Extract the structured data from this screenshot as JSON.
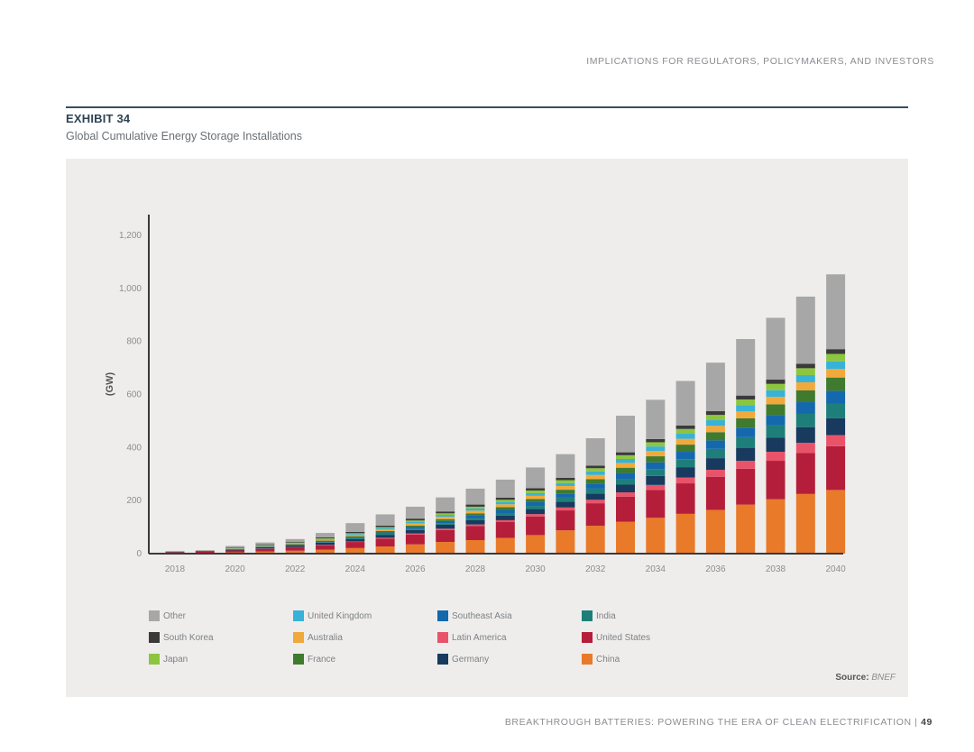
{
  "header": {
    "running_head": "IMPLICATIONS FOR REGULATORS, POLICYMAKERS, AND INVESTORS"
  },
  "exhibit": {
    "label": "EXHIBIT 34",
    "title": "Global Cumulative Energy Storage Installations"
  },
  "source": {
    "label": "Source:",
    "value": "BNEF"
  },
  "footer": {
    "text": "BREAKTHROUGH BATTERIES: POWERING THE ERA OF CLEAN ELECTRIFICATION",
    "separator": "|",
    "page": "49"
  },
  "chart_data": {
    "type": "bar",
    "stacked": true,
    "title": "Global Cumulative Energy Storage Installations",
    "ylabel": "(GW)",
    "xlabel": "",
    "ylim": [
      0,
      1300
    ],
    "yticks": [
      0,
      200,
      400,
      600,
      800,
      1000,
      1200
    ],
    "ytick_labels": [
      "0",
      "200",
      "400",
      "600",
      "800",
      "1,000",
      "1,200"
    ],
    "x": [
      2018,
      2019,
      2020,
      2021,
      2022,
      2023,
      2024,
      2025,
      2026,
      2027,
      2028,
      2029,
      2030,
      2031,
      2032,
      2033,
      2034,
      2035,
      2036,
      2037,
      2038,
      2039,
      2040
    ],
    "xtick_labels": [
      "2018",
      "2020",
      "2022",
      "2024",
      "2026",
      "2028",
      "2030",
      "2032",
      "2034",
      "2036",
      "2038",
      "2040"
    ],
    "grid": false,
    "legend_position": "bottom",
    "series": [
      {
        "name": "China",
        "color": "#e87a2a",
        "values": [
          2,
          3,
          5,
          8,
          11,
          15,
          21,
          27,
          35,
          44,
          51,
          59,
          70,
          88,
          105,
          120,
          135,
          150,
          165,
          185,
          205,
          225,
          240
        ]
      },
      {
        "name": "United States",
        "color": "#b51e3a",
        "values": [
          3,
          4,
          7,
          10,
          13,
          17,
          23,
          30,
          37,
          45,
          53,
          60,
          70,
          75,
          85,
          95,
          105,
          115,
          125,
          135,
          145,
          155,
          165
        ]
      },
      {
        "name": "Latin America",
        "color": "#e9536a",
        "values": [
          0,
          0,
          0,
          1,
          1,
          2,
          2,
          3,
          4,
          5,
          6,
          7,
          9,
          11,
          13,
          16,
          19,
          22,
          26,
          30,
          34,
          38,
          42
        ]
      },
      {
        "name": "Germany",
        "color": "#173a5e",
        "values": [
          1,
          2,
          3,
          5,
          6,
          7,
          9,
          11,
          13,
          15,
          16,
          17,
          19,
          22,
          24,
          29,
          34,
          39,
          44,
          49,
          54,
          59,
          64
        ]
      },
      {
        "name": "India",
        "color": "#1e7f7a",
        "values": [
          0,
          0,
          0,
          1,
          1,
          2,
          3,
          4,
          5,
          6,
          8,
          10,
          12,
          15,
          18,
          22,
          26,
          30,
          35,
          40,
          45,
          50,
          55
        ]
      },
      {
        "name": "Southeast Asia",
        "color": "#1468ae",
        "values": [
          0,
          0,
          1,
          1,
          2,
          3,
          4,
          5,
          6,
          8,
          10,
          12,
          14,
          16,
          19,
          22,
          25,
          28,
          32,
          36,
          40,
          44,
          48
        ]
      },
      {
        "name": "France",
        "color": "#3f7a2e",
        "values": [
          0,
          0,
          1,
          1,
          2,
          3,
          4,
          5,
          6,
          7,
          8,
          10,
          12,
          14,
          17,
          20,
          23,
          27,
          31,
          35,
          40,
          45,
          50
        ]
      },
      {
        "name": "Australia",
        "color": "#f2a93b",
        "values": [
          0,
          0,
          1,
          2,
          2,
          3,
          4,
          6,
          8,
          9,
          10,
          11,
          12,
          14,
          16,
          18,
          20,
          22,
          24,
          26,
          28,
          30,
          32
        ]
      },
      {
        "name": "United Kingdom",
        "color": "#37b2d8",
        "values": [
          0,
          0,
          1,
          2,
          2,
          3,
          4,
          5,
          6,
          7,
          8,
          9,
          10,
          11,
          13,
          15,
          17,
          19,
          21,
          23,
          25,
          27,
          29
        ]
      },
      {
        "name": "Japan",
        "color": "#8cc63f",
        "values": [
          0,
          0,
          1,
          1,
          2,
          2,
          3,
          4,
          5,
          6,
          7,
          8,
          10,
          11,
          12,
          14,
          16,
          18,
          20,
          22,
          24,
          26,
          28
        ]
      },
      {
        "name": "South Korea",
        "color": "#3a3a3a",
        "values": [
          1,
          1,
          2,
          3,
          3,
          4,
          5,
          6,
          7,
          7,
          8,
          8,
          9,
          9,
          10,
          11,
          12,
          13,
          14,
          15,
          16,
          17,
          18
        ]
      },
      {
        "name": "Other",
        "color": "#a7a7a7",
        "values": [
          3,
          3,
          7,
          7,
          10,
          17,
          33,
          42,
          45,
          53,
          60,
          68,
          78,
          89,
          103,
          138,
          148,
          168,
          183,
          213,
          233,
          253,
          282
        ]
      }
    ],
    "legend_order": [
      "Other",
      "United Kingdom",
      "Southeast Asia",
      "India",
      "South Korea",
      "Australia",
      "Latin America",
      "United States",
      "Japan",
      "France",
      "Germany",
      "China"
    ]
  }
}
